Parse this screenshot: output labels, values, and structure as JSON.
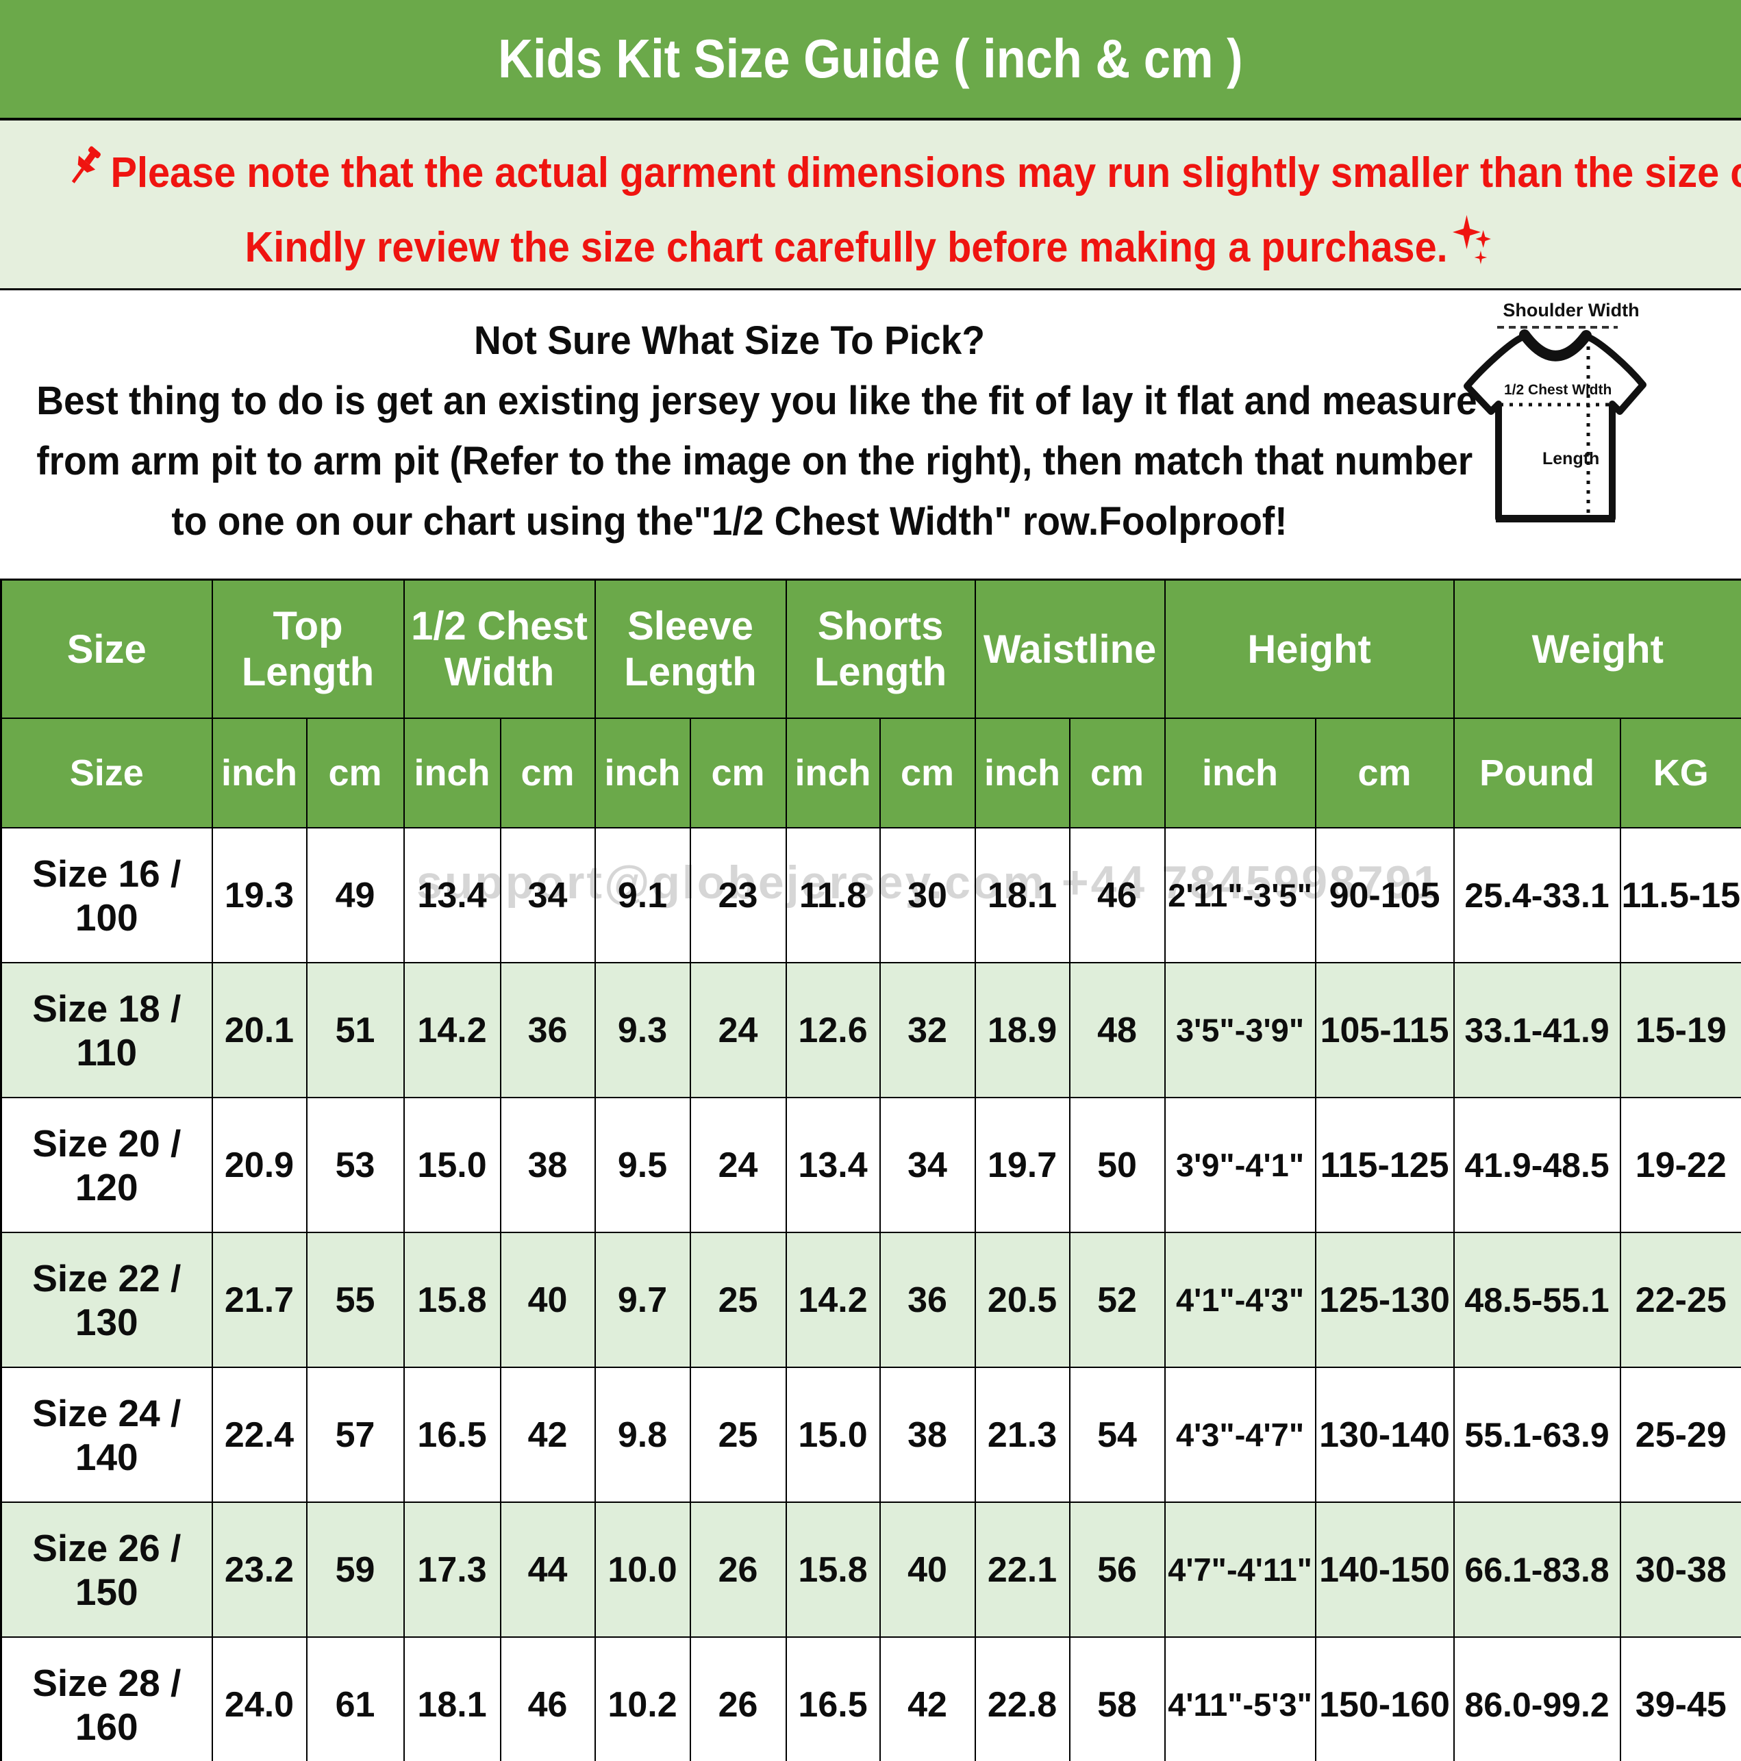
{
  "page": {
    "title": "Kids Kit Size Guide ( inch & cm )",
    "watermark": "support@globejersey.com  +44 7845998791"
  },
  "notice": {
    "line1": "Please note that the actual garment dimensions may run slightly smaller than the size chart",
    "line1_end": ".",
    "line2": "Kindly review the size chart carefully before making a purchase."
  },
  "howto": {
    "line1": "Not Sure What Size To Pick?",
    "line2": "Best thing to do is get an existing jersey you like the fit of lay it flat and measure",
    "line3": "from arm pit to arm pit (Refer to the image on the right), then match that number",
    "line4": "to one on our chart using the\"1/2 Chest Width\" row.Foolproof!"
  },
  "diagram": {
    "shoulder_label": "Shoulder Width",
    "chest_label": "1/2 Chest Width",
    "length_label": "Length"
  },
  "colors": {
    "green": "#6ba94a",
    "row_green": "#dfeeda",
    "notice_bg": "#e5efdd",
    "red": "#ef1410"
  },
  "chart_data": {
    "type": "table",
    "group_headers": [
      {
        "label": "Size",
        "colspan": 1
      },
      {
        "label": "Top Length",
        "colspan": 2
      },
      {
        "label": "1/2 Chest Width",
        "colspan": 2
      },
      {
        "label": "Sleeve Length",
        "colspan": 2
      },
      {
        "label": "Shorts Length",
        "colspan": 2
      },
      {
        "label": "Waistline",
        "colspan": 2
      },
      {
        "label": "Height",
        "colspan": 2
      },
      {
        "label": "Weight",
        "colspan": 2
      }
    ],
    "sub_headers": [
      "Size",
      "inch",
      "cm",
      "inch",
      "cm",
      "inch",
      "cm",
      "inch",
      "cm",
      "inch",
      "cm",
      "inch",
      "cm",
      "Pound",
      "KG"
    ],
    "rows": [
      [
        "Size 16 / 100",
        "19.3",
        "49",
        "13.4",
        "34",
        "9.1",
        "23",
        "11.8",
        "30",
        "18.1",
        "46",
        "2'11\"-3'5\"",
        "90-105",
        "25.4-33.1",
        "11.5-15"
      ],
      [
        "Size 18 / 110",
        "20.1",
        "51",
        "14.2",
        "36",
        "9.3",
        "24",
        "12.6",
        "32",
        "18.9",
        "48",
        "3'5\"-3'9\"",
        "105-115",
        "33.1-41.9",
        "15-19"
      ],
      [
        "Size 20 / 120",
        "20.9",
        "53",
        "15.0",
        "38",
        "9.5",
        "24",
        "13.4",
        "34",
        "19.7",
        "50",
        "3'9\"-4'1\"",
        "115-125",
        "41.9-48.5",
        "19-22"
      ],
      [
        "Size 22 / 130",
        "21.7",
        "55",
        "15.8",
        "40",
        "9.7",
        "25",
        "14.2",
        "36",
        "20.5",
        "52",
        "4'1\"-4'3\"",
        "125-130",
        "48.5-55.1",
        "22-25"
      ],
      [
        "Size 24 / 140",
        "22.4",
        "57",
        "16.5",
        "42",
        "9.8",
        "25",
        "15.0",
        "38",
        "21.3",
        "54",
        "4'3\"-4'7\"",
        "130-140",
        "55.1-63.9",
        "25-29"
      ],
      [
        "Size 26 / 150",
        "23.2",
        "59",
        "17.3",
        "44",
        "10.0",
        "26",
        "15.8",
        "40",
        "22.1",
        "56",
        "4'7\"-4'11\"",
        "140-150",
        "66.1-83.8",
        "30-38"
      ],
      [
        "Size 28 / 160",
        "24.0",
        "61",
        "18.1",
        "46",
        "10.2",
        "26",
        "16.5",
        "42",
        "22.8",
        "58",
        "4'11\"-5'3\"",
        "150-160",
        "86.0-99.2",
        "39-45"
      ]
    ]
  }
}
